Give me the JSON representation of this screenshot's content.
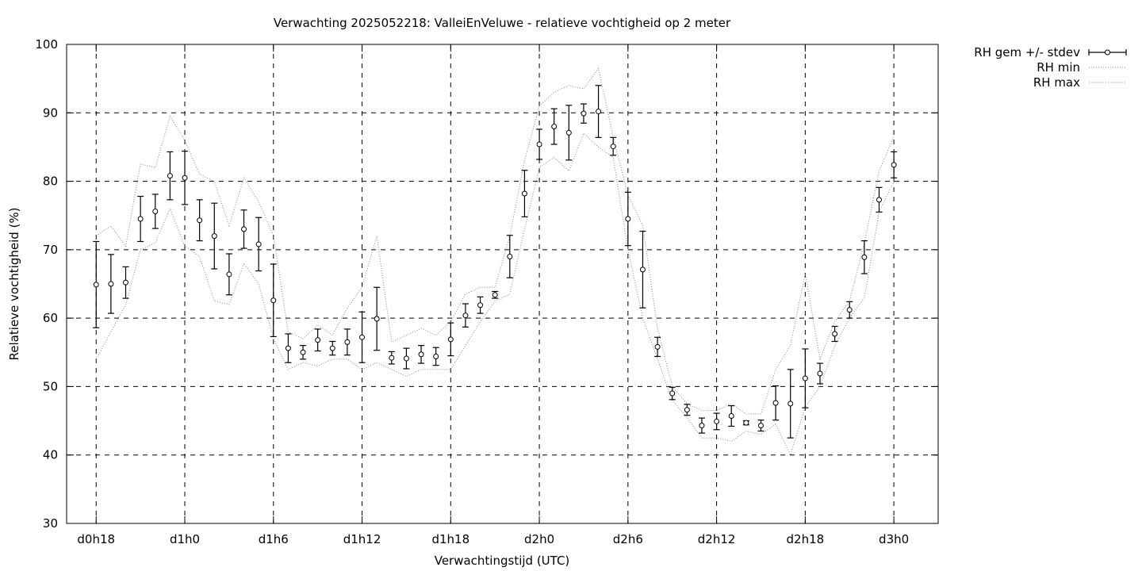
{
  "chart_data": {
    "type": "line",
    "title": "Verwachting 2025052218: ValleiEnVeluwe - relatieve vochtigheid op 2 meter",
    "xlabel": "Verwachtingstijd (UTC)",
    "ylabel": "Relatieve vochtigheid (%)",
    "ylim": [
      30,
      100
    ],
    "yticks": [
      30,
      40,
      50,
      60,
      70,
      80,
      90,
      100
    ],
    "xlim": [
      16,
      75
    ],
    "xticks": [
      {
        "value": 18,
        "label": "d0h18"
      },
      {
        "value": 24,
        "label": "d1h0"
      },
      {
        "value": 30,
        "label": "d1h6"
      },
      {
        "value": 36,
        "label": "d1h12"
      },
      {
        "value": 42,
        "label": "d1h18"
      },
      {
        "value": 48,
        "label": "d2h0"
      },
      {
        "value": 54,
        "label": "d2h6"
      },
      {
        "value": 60,
        "label": "d2h12"
      },
      {
        "value": 66,
        "label": "d2h18"
      },
      {
        "value": 72,
        "label": "d3h0"
      }
    ],
    "grid": true,
    "legend_position": "outside-top-right",
    "x": [
      18,
      19,
      20,
      21,
      22,
      23,
      24,
      25,
      26,
      27,
      28,
      29,
      30,
      31,
      32,
      33,
      34,
      35,
      36,
      37,
      38,
      39,
      40,
      41,
      42,
      43,
      44,
      45,
      46,
      47,
      48,
      49,
      50,
      51,
      52,
      53,
      54,
      55,
      56,
      57,
      58,
      59,
      60,
      61,
      62,
      63,
      64,
      65,
      66,
      67,
      68,
      69,
      70,
      71,
      72
    ],
    "series": [
      {
        "name": "RH gem +/- stdev",
        "style": "errorbars-points",
        "mean": [
          64.9,
          65.0,
          65.2,
          74.5,
          75.6,
          80.8,
          80.5,
          74.3,
          72.0,
          66.4,
          73.0,
          70.8,
          62.6,
          55.6,
          55.0,
          56.8,
          55.6,
          56.5,
          57.2,
          59.9,
          54.2,
          54.1,
          54.7,
          54.4,
          56.9,
          60.4,
          61.9,
          63.4,
          69.0,
          78.2,
          85.4,
          88.0,
          87.1,
          89.9,
          90.2,
          85.1,
          74.5,
          67.1,
          55.8,
          49.0,
          46.6,
          44.3,
          44.9,
          45.7,
          44.7,
          44.3,
          47.6,
          47.5,
          51.2,
          51.9,
          57.7,
          61.2,
          68.9,
          77.3,
          82.4
        ],
        "stdev": [
          6.3,
          4.3,
          2.3,
          3.3,
          2.5,
          3.5,
          3.9,
          3.0,
          4.8,
          3.0,
          2.8,
          3.9,
          5.3,
          2.1,
          1.0,
          1.6,
          1.0,
          1.9,
          3.7,
          4.6,
          0.9,
          1.5,
          1.3,
          1.3,
          2.4,
          1.7,
          1.2,
          0.5,
          3.1,
          3.4,
          2.2,
          2.6,
          4.0,
          1.4,
          3.8,
          1.3,
          3.9,
          5.6,
          1.4,
          0.9,
          0.8,
          1.1,
          1.2,
          1.5,
          0.3,
          0.8,
          2.5,
          5.0,
          4.3,
          1.5,
          1.1,
          1.2,
          2.4,
          1.8,
          1.9
        ]
      },
      {
        "name": "RH min",
        "style": "dotted",
        "values": [
          54.0,
          58.0,
          62.0,
          70.0,
          71.0,
          76.0,
          70.5,
          69.0,
          62.5,
          62.0,
          68.0,
          65.0,
          57.0,
          52.5,
          53.5,
          53.0,
          54.0,
          54.0,
          52.5,
          53.5,
          52.5,
          51.5,
          52.5,
          52.5,
          52.5,
          56.0,
          59.5,
          62.5,
          63.5,
          73.0,
          82.0,
          83.5,
          81.5,
          87.0,
          85.0,
          83.5,
          70.0,
          60.0,
          54.0,
          48.0,
          45.5,
          42.5,
          42.5,
          42.0,
          43.5,
          43.0,
          44.5,
          40.0,
          47.0,
          50.0,
          56.0,
          60.0,
          63.0,
          75.5,
          80.0
        ]
      },
      {
        "name": "RH max",
        "style": "dotted",
        "values": [
          72.0,
          73.5,
          70.5,
          82.5,
          82.0,
          89.5,
          86.0,
          81.0,
          80.0,
          73.5,
          80.5,
          77.0,
          72.0,
          58.0,
          57.0,
          59.0,
          57.5,
          61.5,
          64.5,
          72.0,
          56.5,
          57.5,
          58.5,
          57.5,
          59.5,
          63.5,
          64.5,
          64.5,
          72.0,
          83.0,
          91.0,
          93.0,
          94.0,
          93.5,
          96.5,
          86.5,
          78.0,
          73.5,
          58.5,
          50.0,
          47.5,
          46.5,
          46.5,
          47.5,
          46.0,
          46.0,
          52.5,
          56.0,
          66.5,
          54.0,
          59.5,
          62.5,
          71.0,
          81.5,
          86.5
        ]
      }
    ]
  }
}
